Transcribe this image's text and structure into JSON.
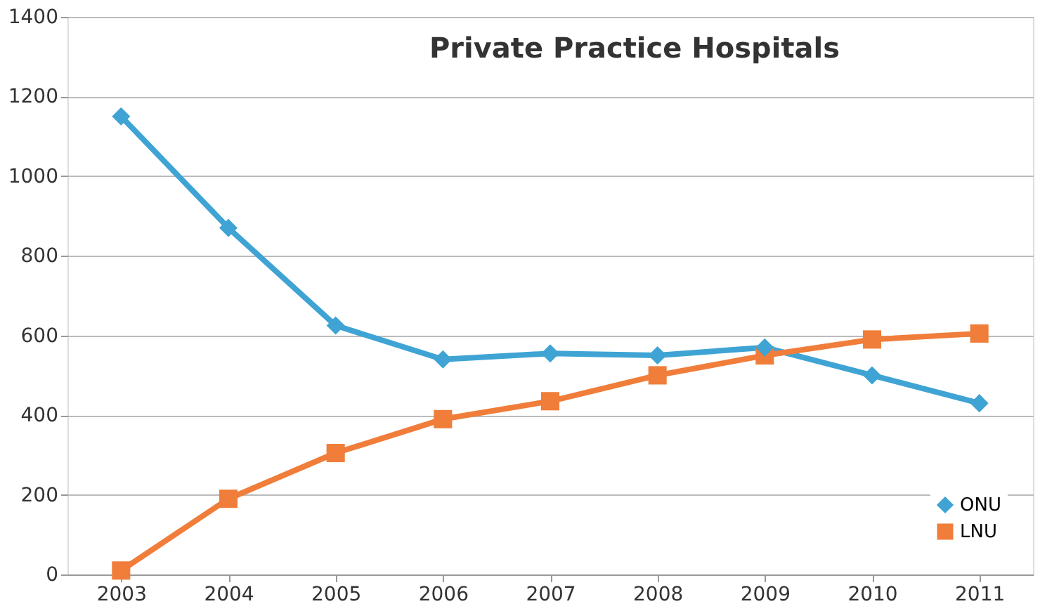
{
  "chart_data": {
    "type": "line",
    "title": "Private Practice Hospitals",
    "categories": [
      "2003",
      "2004",
      "2005",
      "2006",
      "2007",
      "2008",
      "2009",
      "2010",
      "2011"
    ],
    "series": [
      {
        "name": "ONU",
        "color": "#3fa4d4",
        "marker": "diamond",
        "values": [
          1150,
          870,
          625,
          540,
          555,
          550,
          570,
          500,
          430
        ]
      },
      {
        "name": "LNU",
        "color": "#f07d3a",
        "marker": "square",
        "values": [
          10,
          190,
          305,
          390,
          435,
          500,
          550,
          590,
          605
        ]
      }
    ],
    "ylim": [
      0,
      1400
    ],
    "yticks": [
      0,
      200,
      400,
      600,
      800,
      1000,
      1200,
      1400
    ],
    "grid": "y",
    "legend": "bottom right",
    "line_style": "solid"
  }
}
